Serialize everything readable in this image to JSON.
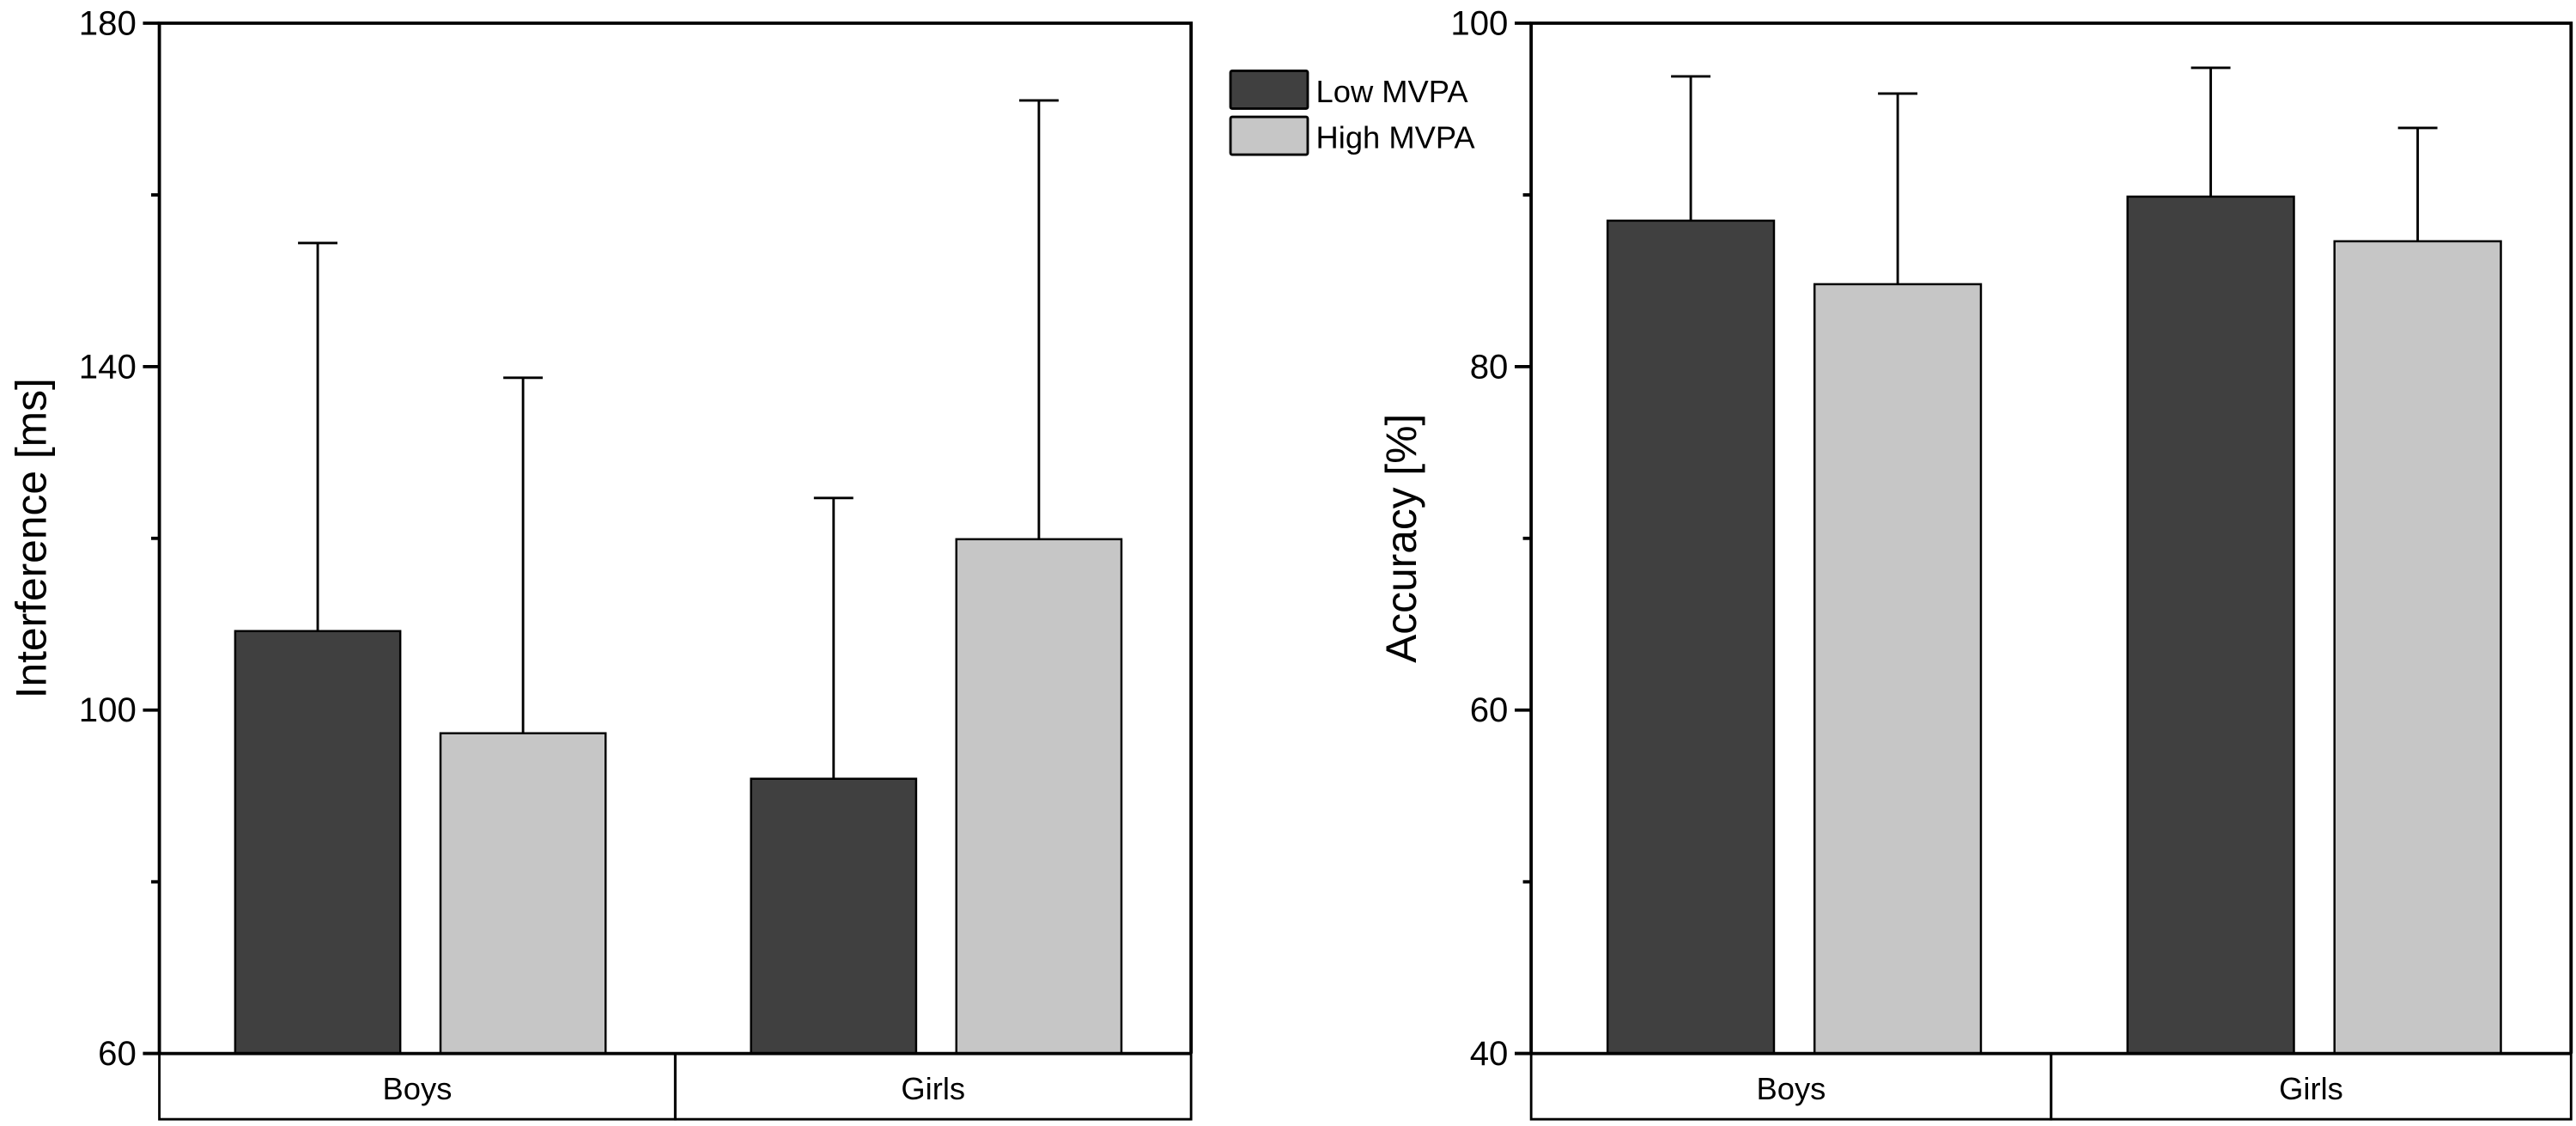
{
  "colors": {
    "low": "#404040",
    "high": "#c6c6c6",
    "axis": "#000000"
  },
  "legend": {
    "placement": "top-center",
    "items": [
      {
        "label": "Low MVPA",
        "color": "#404040"
      },
      {
        "label": "High MVPA",
        "color": "#c6c6c6"
      }
    ]
  },
  "chart_data": [
    {
      "type": "bar",
      "title": "",
      "xlabel": "",
      "ylabel": "Interference [ms]",
      "ylim": [
        60,
        180
      ],
      "yticks": [
        60,
        100,
        140,
        180
      ],
      "categories": [
        "Boys",
        "Girls"
      ],
      "error_bars": "upper",
      "series": [
        {
          "name": "Low MVPA",
          "values": [
            109.2,
            92.0
          ],
          "error_upper": [
            154.4,
            124.7
          ]
        },
        {
          "name": "High MVPA",
          "values": [
            97.3,
            119.9
          ],
          "error_upper": [
            138.7,
            171.0
          ]
        }
      ]
    },
    {
      "type": "bar",
      "title": "",
      "xlabel": "",
      "ylabel": "Accuracy [%]",
      "ylim": [
        40,
        100
      ],
      "yticks": [
        40,
        60,
        80,
        100
      ],
      "categories": [
        "Boys",
        "Girls"
      ],
      "error_bars": "upper",
      "series": [
        {
          "name": "Low MVPA",
          "values": [
            88.5,
            89.9
          ],
          "error_upper": [
            96.9,
            97.4
          ]
        },
        {
          "name": "High MVPA",
          "values": [
            84.8,
            87.3
          ],
          "error_upper": [
            95.9,
            93.9
          ]
        }
      ]
    }
  ]
}
